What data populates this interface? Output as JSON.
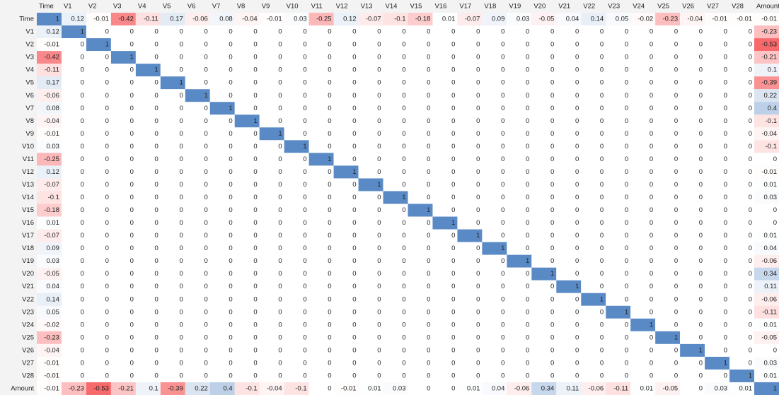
{
  "chart_data": {
    "type": "heatmap",
    "categories": [
      "Time",
      "V1",
      "V2",
      "V3",
      "V4",
      "V5",
      "V6",
      "V7",
      "V8",
      "V9",
      "V10",
      "V11",
      "V12",
      "V13",
      "V14",
      "V15",
      "V16",
      "V17",
      "V18",
      "V19",
      "V20",
      "V21",
      "V22",
      "V23",
      "V24",
      "V25",
      "V26",
      "V27",
      "V28",
      "Amount"
    ],
    "colors": {
      "negative": "#f8696b",
      "zero": "#ffffff",
      "positive": "#5a8ac6"
    },
    "values": [
      [
        1,
        0.12,
        -0.01,
        -0.42,
        -0.11,
        0.17,
        -0.06,
        0.08,
        -0.04,
        -0.01,
        0.03,
        -0.25,
        0.12,
        -0.07,
        -0.1,
        -0.18,
        0.01,
        -0.07,
        0.09,
        0.03,
        -0.05,
        0.04,
        0.14,
        0.05,
        -0.02,
        -0.23,
        -0.04,
        -0.01,
        -0.01,
        -0.01
      ],
      [
        0.12,
        1,
        0,
        0,
        0,
        0,
        0,
        0,
        0,
        0,
        0,
        0,
        0,
        0,
        0,
        0,
        0,
        0,
        0,
        0,
        0,
        0,
        0,
        0,
        0,
        0,
        0,
        0,
        0,
        -0.23
      ],
      [
        -0.01,
        0,
        1,
        0,
        0,
        0,
        0,
        0,
        0,
        0,
        0,
        0,
        0,
        0,
        0,
        0,
        0,
        0,
        0,
        0,
        0,
        0,
        0,
        0,
        0,
        0,
        0,
        0,
        0,
        -0.53
      ],
      [
        -0.42,
        0,
        0,
        1,
        0,
        0,
        0,
        0,
        0,
        0,
        0,
        0,
        0,
        0,
        0,
        0,
        0,
        0,
        0,
        0,
        0,
        0,
        0,
        0,
        0,
        0,
        0,
        0,
        0,
        -0.21
      ],
      [
        -0.11,
        0,
        0,
        0,
        1,
        0,
        0,
        0,
        0,
        0,
        0,
        0,
        0,
        0,
        0,
        0,
        0,
        0,
        0,
        0,
        0,
        0,
        0,
        0,
        0,
        0,
        0,
        0,
        0,
        0.1
      ],
      [
        0.17,
        0,
        0,
        0,
        0,
        1,
        0,
        0,
        0,
        0,
        0,
        0,
        0,
        0,
        0,
        0,
        0,
        0,
        0,
        0,
        0,
        0,
        0,
        0,
        0,
        0,
        0,
        0,
        0,
        -0.39
      ],
      [
        -0.06,
        0,
        0,
        0,
        0,
        0,
        1,
        0,
        0,
        0,
        0,
        0,
        0,
        0,
        0,
        0,
        0,
        0,
        0,
        0,
        0,
        0,
        0,
        0,
        0,
        0,
        0,
        0,
        0,
        0.22
      ],
      [
        0.08,
        0,
        0,
        0,
        0,
        0,
        0,
        1,
        0,
        0,
        0,
        0,
        0,
        0,
        0,
        0,
        0,
        0,
        0,
        0,
        0,
        0,
        0,
        0,
        0,
        0,
        0,
        0,
        0,
        0.4
      ],
      [
        -0.04,
        0,
        0,
        0,
        0,
        0,
        0,
        0,
        1,
        0,
        0,
        0,
        0,
        0,
        0,
        0,
        0,
        0,
        0,
        0,
        0,
        0,
        0,
        0,
        0,
        0,
        0,
        0,
        0,
        -0.1
      ],
      [
        -0.01,
        0,
        0,
        0,
        0,
        0,
        0,
        0,
        0,
        1,
        0,
        0,
        0,
        0,
        0,
        0,
        0,
        0,
        0,
        0,
        0,
        0,
        0,
        0,
        0,
        0,
        0,
        0,
        0,
        -0.04
      ],
      [
        0.03,
        0,
        0,
        0,
        0,
        0,
        0,
        0,
        0,
        0,
        1,
        0,
        0,
        0,
        0,
        0,
        0,
        0,
        0,
        0,
        0,
        0,
        0,
        0,
        0,
        0,
        0,
        0,
        0,
        -0.1
      ],
      [
        -0.25,
        0,
        0,
        0,
        0,
        0,
        0,
        0,
        0,
        0,
        0,
        1,
        0,
        0,
        0,
        0,
        0,
        0,
        0,
        0,
        0,
        0,
        0,
        0,
        0,
        0,
        0,
        0,
        0,
        0
      ],
      [
        0.12,
        0,
        0,
        0,
        0,
        0,
        0,
        0,
        0,
        0,
        0,
        0,
        1,
        0,
        0,
        0,
        0,
        0,
        0,
        0,
        0,
        0,
        0,
        0,
        0,
        0,
        0,
        0,
        0,
        -0.01
      ],
      [
        -0.07,
        0,
        0,
        0,
        0,
        0,
        0,
        0,
        0,
        0,
        0,
        0,
        0,
        1,
        0,
        0,
        0,
        0,
        0,
        0,
        0,
        0,
        0,
        0,
        0,
        0,
        0,
        0,
        0,
        0.01
      ],
      [
        -0.1,
        0,
        0,
        0,
        0,
        0,
        0,
        0,
        0,
        0,
        0,
        0,
        0,
        0,
        1,
        0,
        0,
        0,
        0,
        0,
        0,
        0,
        0,
        0,
        0,
        0,
        0,
        0,
        0,
        0.03
      ],
      [
        -0.18,
        0,
        0,
        0,
        0,
        0,
        0,
        0,
        0,
        0,
        0,
        0,
        0,
        0,
        0,
        1,
        0,
        0,
        0,
        0,
        0,
        0,
        0,
        0,
        0,
        0,
        0,
        0,
        0,
        0
      ],
      [
        0.01,
        0,
        0,
        0,
        0,
        0,
        0,
        0,
        0,
        0,
        0,
        0,
        0,
        0,
        0,
        0,
        1,
        0,
        0,
        0,
        0,
        0,
        0,
        0,
        0,
        0,
        0,
        0,
        0,
        0
      ],
      [
        -0.07,
        0,
        0,
        0,
        0,
        0,
        0,
        0,
        0,
        0,
        0,
        0,
        0,
        0,
        0,
        0,
        0,
        1,
        0,
        0,
        0,
        0,
        0,
        0,
        0,
        0,
        0,
        0,
        0,
        0.01
      ],
      [
        0.09,
        0,
        0,
        0,
        0,
        0,
        0,
        0,
        0,
        0,
        0,
        0,
        0,
        0,
        0,
        0,
        0,
        0,
        1,
        0,
        0,
        0,
        0,
        0,
        0,
        0,
        0,
        0,
        0,
        0.04
      ],
      [
        0.03,
        0,
        0,
        0,
        0,
        0,
        0,
        0,
        0,
        0,
        0,
        0,
        0,
        0,
        0,
        0,
        0,
        0,
        0,
        1,
        0,
        0,
        0,
        0,
        0,
        0,
        0,
        0,
        0,
        -0.06
      ],
      [
        -0.05,
        0,
        0,
        0,
        0,
        0,
        0,
        0,
        0,
        0,
        0,
        0,
        0,
        0,
        0,
        0,
        0,
        0,
        0,
        0,
        1,
        0,
        0,
        0,
        0,
        0,
        0,
        0,
        0,
        0.34
      ],
      [
        0.04,
        0,
        0,
        0,
        0,
        0,
        0,
        0,
        0,
        0,
        0,
        0,
        0,
        0,
        0,
        0,
        0,
        0,
        0,
        0,
        0,
        1,
        0,
        0,
        0,
        0,
        0,
        0,
        0,
        0.11
      ],
      [
        0.14,
        0,
        0,
        0,
        0,
        0,
        0,
        0,
        0,
        0,
        0,
        0,
        0,
        0,
        0,
        0,
        0,
        0,
        0,
        0,
        0,
        0,
        1,
        0,
        0,
        0,
        0,
        0,
        0,
        -0.06
      ],
      [
        0.05,
        0,
        0,
        0,
        0,
        0,
        0,
        0,
        0,
        0,
        0,
        0,
        0,
        0,
        0,
        0,
        0,
        0,
        0,
        0,
        0,
        0,
        0,
        1,
        0,
        0,
        0,
        0,
        0,
        -0.11
      ],
      [
        -0.02,
        0,
        0,
        0,
        0,
        0,
        0,
        0,
        0,
        0,
        0,
        0,
        0,
        0,
        0,
        0,
        0,
        0,
        0,
        0,
        0,
        0,
        0,
        0,
        1,
        0,
        0,
        0,
        0,
        0.01
      ],
      [
        -0.23,
        0,
        0,
        0,
        0,
        0,
        0,
        0,
        0,
        0,
        0,
        0,
        0,
        0,
        0,
        0,
        0,
        0,
        0,
        0,
        0,
        0,
        0,
        0,
        0,
        1,
        0,
        0,
        0,
        -0.05
      ],
      [
        -0.04,
        0,
        0,
        0,
        0,
        0,
        0,
        0,
        0,
        0,
        0,
        0,
        0,
        0,
        0,
        0,
        0,
        0,
        0,
        0,
        0,
        0,
        0,
        0,
        0,
        0,
        1,
        0,
        0,
        0
      ],
      [
        -0.01,
        0,
        0,
        0,
        0,
        0,
        0,
        0,
        0,
        0,
        0,
        0,
        0,
        0,
        0,
        0,
        0,
        0,
        0,
        0,
        0,
        0,
        0,
        0,
        0,
        0,
        0,
        1,
        0,
        0.03
      ],
      [
        -0.01,
        0,
        0,
        0,
        0,
        0,
        0,
        0,
        0,
        0,
        0,
        0,
        0,
        0,
        0,
        0,
        0,
        0,
        0,
        0,
        0,
        0,
        0,
        0,
        0,
        0,
        0,
        0,
        1,
        0.01
      ],
      [
        -0.01,
        -0.23,
        -0.53,
        -0.21,
        0.1,
        -0.39,
        0.22,
        0.4,
        -0.1,
        -0.04,
        -0.1,
        0,
        -0.01,
        0.01,
        0.03,
        0,
        0,
        0.01,
        0.04,
        -0.06,
        0.34,
        0.11,
        -0.06,
        -0.11,
        0.01,
        -0.05,
        0,
        0.03,
        0.01,
        1
      ]
    ]
  }
}
